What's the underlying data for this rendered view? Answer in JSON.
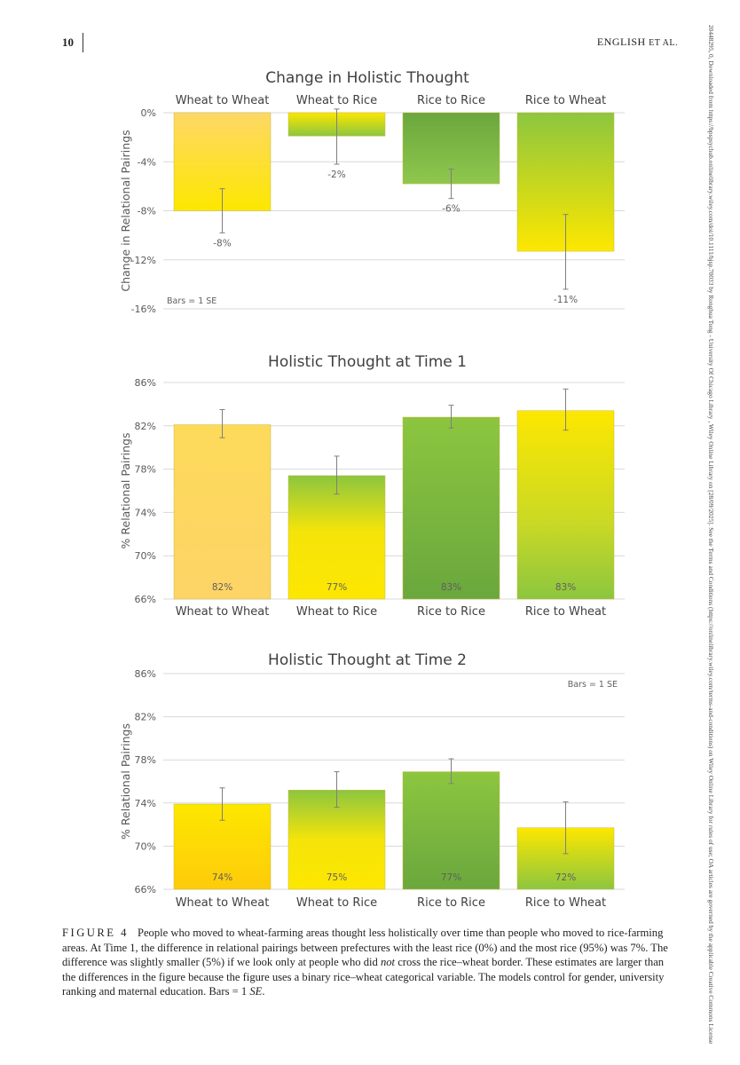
{
  "header": {
    "page_number": "10",
    "running_head_main": "ENGLISH",
    "running_head_suffix": "ET AL."
  },
  "side_note": "20448295, 0, Downloaded from https://bpspsychub.onlinelibrary.wiley.com/doi/10.1111/bjsp.70033 by Ronghua Tong - University Of Chicago Library , Wiley Online Library on [28/09/2025]. See the Terms and Conditions (https://onlinelibrary.wiley.com/terms-and-conditions) on Wiley Online Library for rules of use; OA articles are governed by the applicable Creative Commons License",
  "colors": {
    "wheat_yellow": "#fde01a",
    "rice_green": "#6fac43",
    "grid": "#d9d9d9",
    "axis_text": "#595959"
  },
  "chart_data": [
    {
      "type": "bar",
      "title": "Change in Holistic Thought",
      "ylabel": "Change in Relational Pairings",
      "ylim": [
        -16,
        0
      ],
      "yticks": [
        0,
        -4,
        -8,
        -12,
        -16
      ],
      "ytick_labels": [
        "0%",
        "-4%",
        "-8%",
        "-12%",
        "-16%"
      ],
      "categories": [
        "Wheat to Wheat",
        "Wheat to Rice",
        "Rice to Rice",
        "Rice to Wheat"
      ],
      "category_axis": "top",
      "values": [
        -8,
        -1.9,
        -5.8,
        -11.3
      ],
      "value_labels": [
        "-8%",
        "-2%",
        "-6%",
        "-11%"
      ],
      "error_low": [
        -9.8,
        -4.2,
        -7.0,
        -14.4
      ],
      "error_high": [
        -6.2,
        0.3,
        -4.6,
        -8.3
      ],
      "note": "Bars = 1 SE"
    },
    {
      "type": "bar",
      "title": "Holistic Thought at Time 1",
      "ylabel": "% Relational Pairings",
      "ylim": [
        66,
        86
      ],
      "yticks": [
        66,
        70,
        74,
        78,
        82,
        86
      ],
      "ytick_labels": [
        "66%",
        "70%",
        "74%",
        "78%",
        "82%",
        "86%"
      ],
      "categories": [
        "Wheat to Wheat",
        "Wheat to Rice",
        "Rice to Rice",
        "Rice to Wheat"
      ],
      "category_axis": "bottom",
      "values": [
        82.1,
        77.4,
        82.8,
        83.4
      ],
      "value_labels": [
        "82%",
        "77%",
        "83%",
        "83%"
      ],
      "error_low": [
        80.9,
        75.7,
        81.8,
        81.6
      ],
      "error_high": [
        83.5,
        79.2,
        83.9,
        85.4
      ],
      "note": ""
    },
    {
      "type": "bar",
      "title": "Holistic Thought at Time 2",
      "ylabel": "% Relational Pairings",
      "ylim": [
        66,
        86
      ],
      "yticks": [
        66,
        70,
        74,
        78,
        82,
        86
      ],
      "ytick_labels": [
        "66%",
        "70%",
        "74%",
        "78%",
        "82%",
        "86%"
      ],
      "categories": [
        "Wheat to Wheat",
        "Wheat to Rice",
        "Rice to Rice",
        "Rice to Wheat"
      ],
      "category_axis": "bottom",
      "values": [
        73.9,
        75.2,
        76.9,
        71.7
      ],
      "value_labels": [
        "74%",
        "75%",
        "77%",
        "72%"
      ],
      "error_low": [
        72.4,
        73.6,
        75.8,
        69.3
      ],
      "error_high": [
        75.4,
        76.9,
        78.1,
        74.1
      ],
      "note": "Bars = 1 SE"
    }
  ],
  "caption": {
    "label": "FIGURE 4",
    "text_1": "People who moved to wheat-farming areas thought less holistically over time than people who moved to rice-farming areas. At Time 1, the difference in relational pairings between prefectures with the least rice (0%) and the most rice (95%) was 7%. The difference was slightly smaller (5%) if we look only at people who did ",
    "emphasis": "not",
    "text_2": " cross the rice–wheat border. These estimates are larger than the differences in the figure because the figure uses a binary rice–wheat categorical variable. The models control for gender, university ranking and maternal education. Bars = 1 ",
    "se": "SE",
    "text_3": "."
  }
}
